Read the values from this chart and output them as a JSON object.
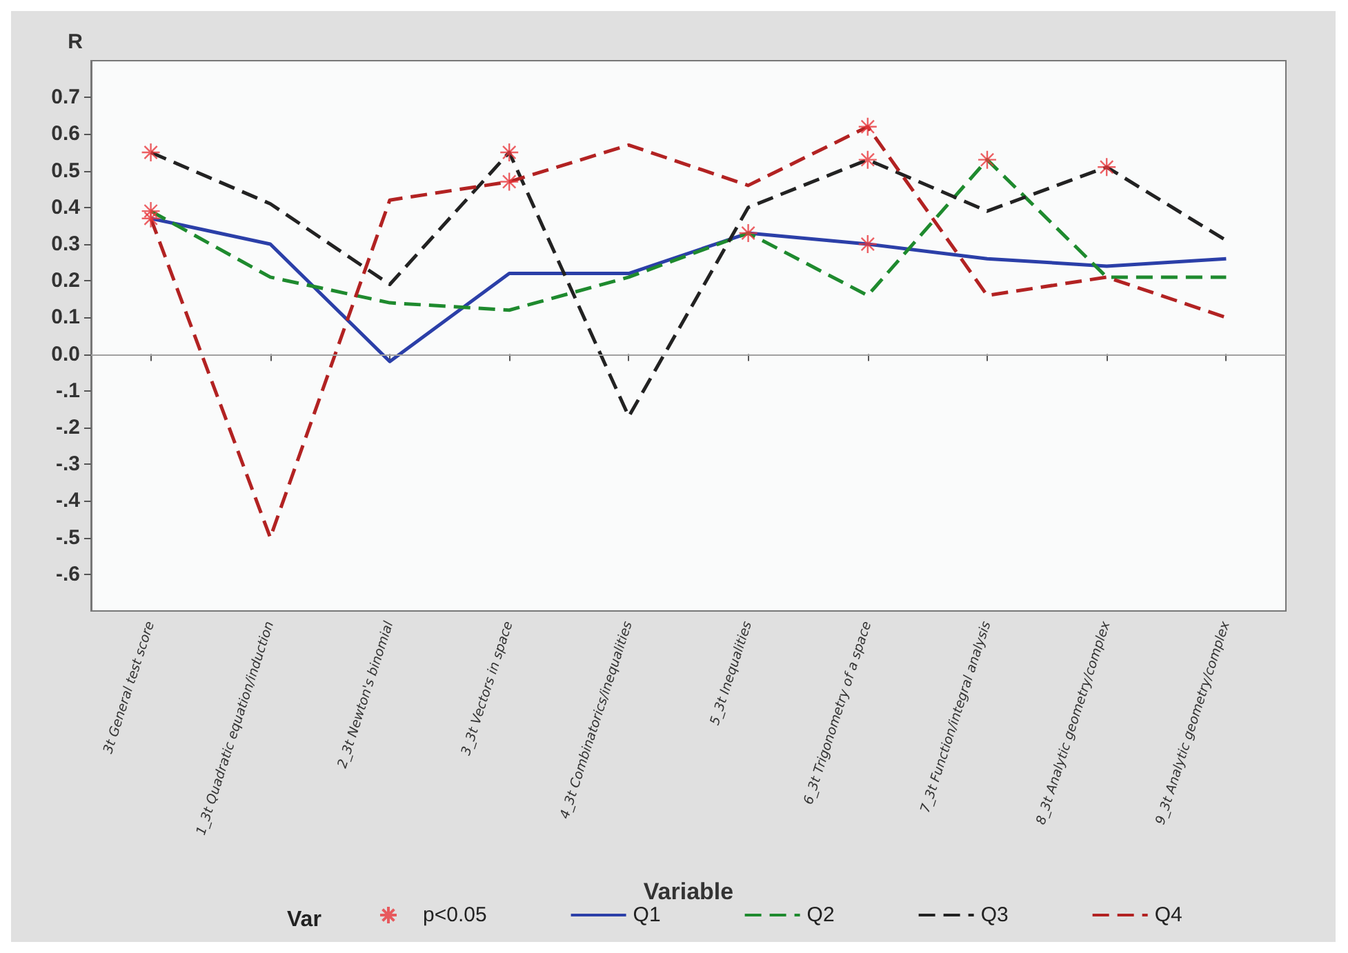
{
  "chart_data": {
    "type": "line",
    "xlabel": "Variable",
    "ylabel": "R",
    "legend_title": "Var",
    "legend": "bottom",
    "grid": false,
    "categories": [
      "3t General test score",
      "1_3t Quadratic equation/induction",
      "2_3t Newton's binomial",
      "3_3t Vectors in space",
      "4_3t Combinatorics/inequalities",
      "5_3t Inequalities",
      "6_3t Trigonometry of a space",
      "7_3t Function/integral analysis",
      "8_3t Analytic geometry/complex",
      "9_3t Analytic geometry/complex"
    ],
    "ylim": [
      -0.7,
      0.8
    ],
    "yticks": [
      {
        "value": -0.6,
        "label": "-.6"
      },
      {
        "value": -0.5,
        "label": "-.5"
      },
      {
        "value": -0.4,
        "label": "-.4"
      },
      {
        "value": -0.3,
        "label": "-.3"
      },
      {
        "value": -0.2,
        "label": "-.2"
      },
      {
        "value": -0.1,
        "label": "-.1"
      },
      {
        "value": 0,
        "label": "0.0"
      },
      {
        "value": 0.1,
        "label": "0.1"
      },
      {
        "value": 0.2,
        "label": "0.2"
      },
      {
        "value": 0.3,
        "label": "0.3"
      },
      {
        "value": 0.4,
        "label": "0.4"
      },
      {
        "value": 0.5,
        "label": "0.5"
      },
      {
        "value": 0.6,
        "label": "0.6"
      },
      {
        "value": 0.7,
        "label": "0.7"
      }
    ],
    "ref_lines": [
      {
        "axis": "y",
        "value": 0,
        "color": "#a0a0a0"
      }
    ],
    "series": [
      {
        "name": "p<0.05",
        "type": "scatter",
        "marker": "cross",
        "color": "#e8383d",
        "x": [
          "3t General test score",
          "3t General test score",
          "3t General test score",
          "3_3t Vectors in space",
          "3_3t Vectors in space",
          "5_3t Inequalities",
          "6_3t Trigonometry of a space",
          "6_3t Trigonometry of a space",
          "6_3t Trigonometry of a space",
          "7_3t Function/integral analysis",
          "8_3t Analytic geometry/complex"
        ],
        "values": [
          0.55,
          0.39,
          0.37,
          0.55,
          0.47,
          0.33,
          0.62,
          0.53,
          0.3,
          0.53,
          0.51
        ]
      },
      {
        "name": "Q1",
        "color": "#2b3fa8",
        "line_style": "solid",
        "marker": "none",
        "values": [
          0.37,
          0.3,
          -0.02,
          0.22,
          0.22,
          0.33,
          0.3,
          0.26,
          0.24,
          0.26
        ]
      },
      {
        "name": "Q2",
        "color": "#1e8a2e",
        "line_style": "dashed",
        "marker": "none",
        "values": [
          0.39,
          0.21,
          0.14,
          0.12,
          0.21,
          0.33,
          0.16,
          0.53,
          0.21,
          0.21
        ]
      },
      {
        "name": "Q3",
        "color": "#222222",
        "line_style": "dashed",
        "marker": "none",
        "values": [
          0.55,
          0.41,
          0.19,
          0.55,
          -0.17,
          0.4,
          0.53,
          0.39,
          0.51,
          0.31
        ]
      },
      {
        "name": "Q4",
        "color": "#b22222",
        "line_style": "dashed",
        "marker": "none",
        "values": [
          0.37,
          -0.5,
          0.42,
          0.47,
          0.57,
          0.46,
          0.62,
          0.16,
          0.21,
          0.1
        ]
      }
    ]
  }
}
